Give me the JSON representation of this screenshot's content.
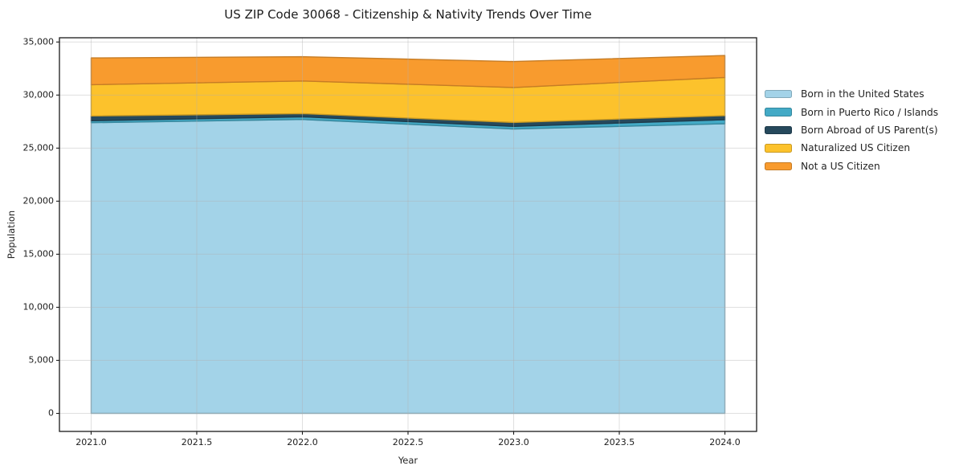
{
  "chart_data": {
    "type": "area",
    "stacked": true,
    "title": "US ZIP Code 30068 - Citizenship & Nativity Trends Over Time",
    "xlabel": "Year",
    "ylabel": "Population",
    "x": [
      2021,
      2022,
      2023,
      2024
    ],
    "series": [
      {
        "name": "Born in the United States",
        "color": "#A3D3E8",
        "values": [
          27400,
          27700,
          26800,
          27300
        ]
      },
      {
        "name": "Born in Puerto Rico / Islands",
        "color": "#43AAC6",
        "values": [
          180,
          250,
          250,
          380
        ]
      },
      {
        "name": "Born Abroad of US Parent(s)",
        "color": "#26495C",
        "values": [
          450,
          300,
          370,
          380
        ]
      },
      {
        "name": "Naturalized US Citizen",
        "color": "#FCC22C",
        "values": [
          2950,
          3080,
          3290,
          3600
        ]
      },
      {
        "name": "Not a US Citizen",
        "color": "#F89B2E",
        "values": [
          2520,
          2280,
          2450,
          2070
        ]
      }
    ],
    "xlim": [
      2020.85,
      2024.15
    ],
    "ylim": [
      -1700,
      35400
    ],
    "xticks": {
      "values": [
        2021,
        2021.5,
        2022,
        2022.5,
        2023,
        2023.5,
        2024
      ],
      "labels": [
        "2021.0",
        "2021.5",
        "2022.0",
        "2022.5",
        "2023.0",
        "2023.5",
        "2024.0"
      ]
    },
    "yticks": {
      "values": [
        0,
        5000,
        10000,
        15000,
        20000,
        25000,
        30000,
        35000
      ],
      "labels": [
        "0",
        "5,000",
        "10,000",
        "15,000",
        "20,000",
        "25,000",
        "30,000",
        "35,000"
      ]
    },
    "grid": true,
    "grid_color": "#b0b0b0",
    "legend_position": "center-right outside"
  }
}
